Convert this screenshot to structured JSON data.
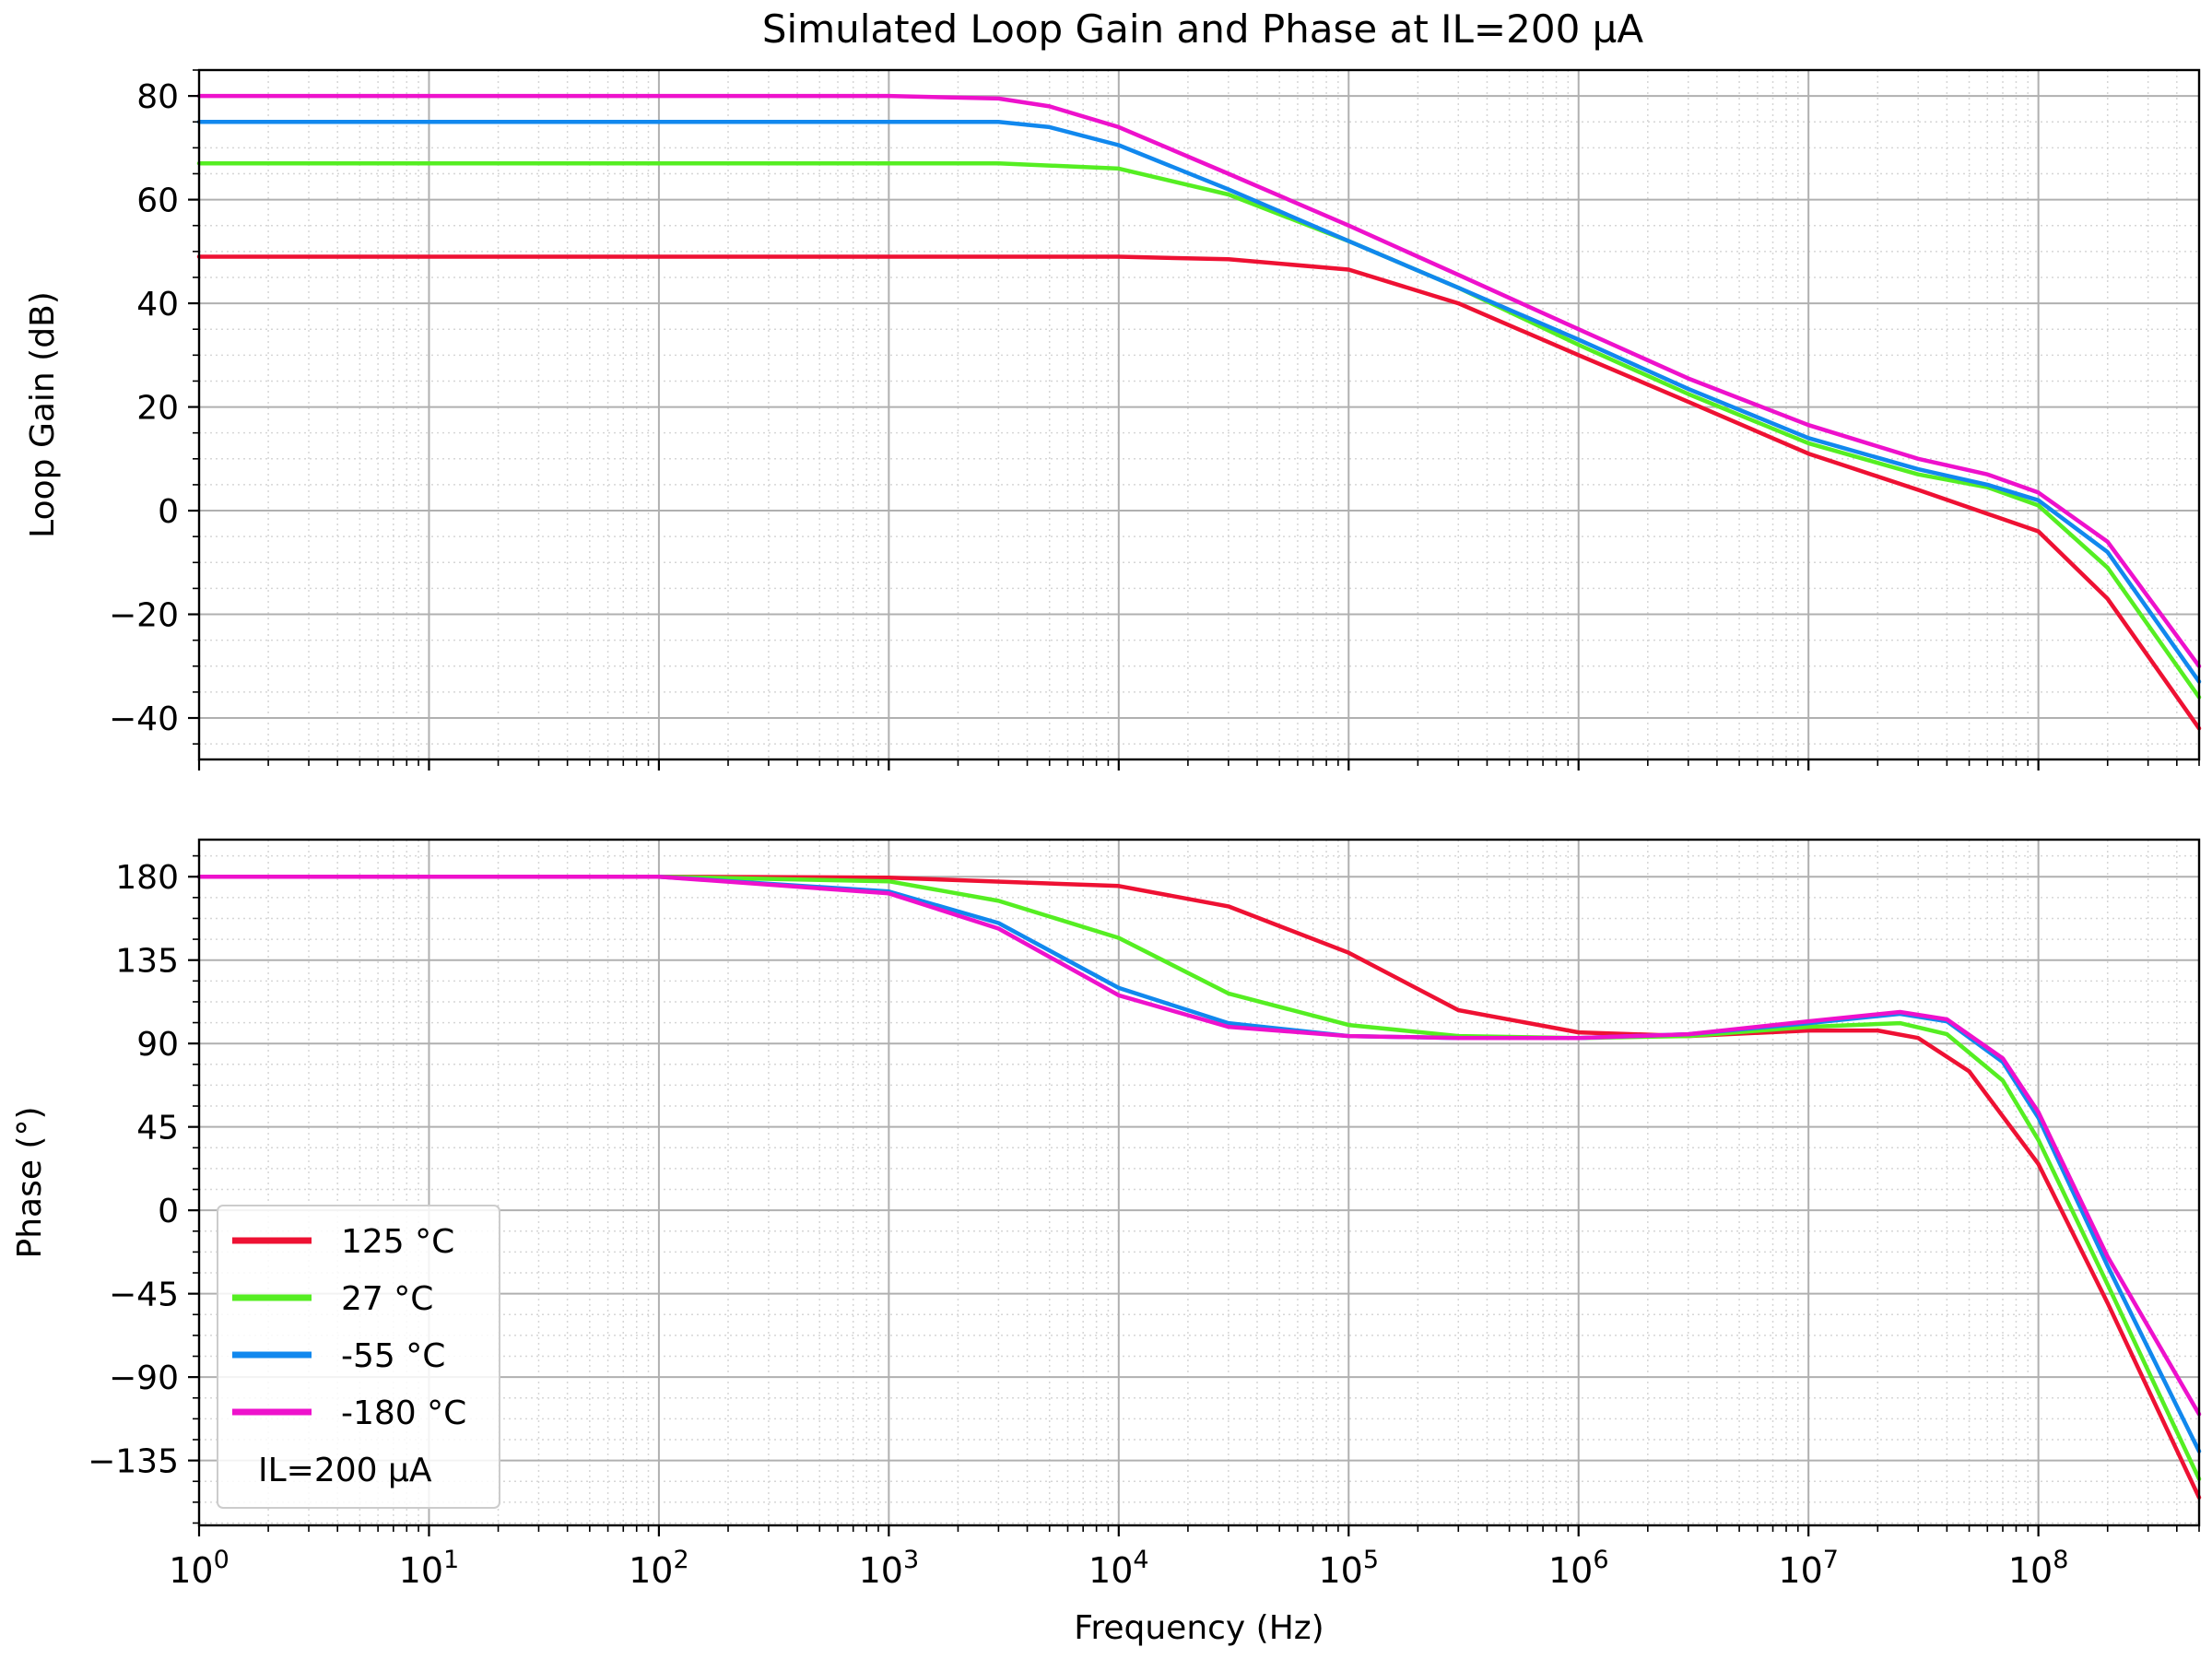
{
  "figure": {
    "title": "Simulated Loop Gain and Phase at IL=200 µA"
  },
  "chart_data": [
    {
      "type": "line",
      "panel": "gain",
      "title": "Simulated Loop Gain and Phase at IL=200 µA",
      "xlabel": "",
      "ylabel": "Loop Gain (dB)",
      "xscale": "log",
      "xlim": [
        1,
        500000000
      ],
      "ylim": [
        -48,
        85
      ],
      "yticks": [
        80,
        60,
        40,
        20,
        0,
        -20,
        -40
      ],
      "ytick_labels": [
        "80",
        "60",
        "40",
        "20",
        "0",
        "−20",
        "−40"
      ],
      "grid": true,
      "series": [
        {
          "name": "125 °C",
          "color": "#ee1133",
          "x": [
            1,
            10,
            100,
            1000,
            10000,
            30000,
            100000,
            300000,
            1000000,
            3000000,
            10000000,
            30000000,
            100000000,
            200000000,
            500000000
          ],
          "y": [
            49,
            49,
            49,
            49,
            49,
            48.5,
            46.5,
            40,
            30,
            21,
            11,
            4,
            -4,
            -17,
            -42
          ]
        },
        {
          "name": "27 °C",
          "color": "#55ee22",
          "x": [
            1,
            10,
            100,
            1000,
            3000,
            10000,
            30000,
            100000,
            300000,
            1000000,
            3000000,
            10000000,
            30000000,
            60000000,
            100000000,
            200000000,
            500000000
          ],
          "y": [
            67,
            67,
            67,
            67,
            67,
            66,
            61,
            52,
            43,
            32,
            22.5,
            13,
            7,
            4.5,
            1,
            -11,
            -36
          ]
        },
        {
          "name": "-55 °C",
          "color": "#1188ee",
          "x": [
            1,
            10,
            100,
            1000,
            3000,
            5000,
            10000,
            30000,
            100000,
            300000,
            1000000,
            3000000,
            10000000,
            30000000,
            60000000,
            100000000,
            200000000,
            500000000
          ],
          "y": [
            75,
            75,
            75,
            75,
            75,
            74,
            70.5,
            62,
            52,
            43,
            33,
            23.5,
            14,
            8,
            5,
            2,
            -8,
            -33
          ]
        },
        {
          "name": "-180 °C",
          "color": "#ee11cc",
          "x": [
            1,
            10,
            100,
            1000,
            3000,
            5000,
            10000,
            30000,
            100000,
            300000,
            1000000,
            3000000,
            10000000,
            30000000,
            60000000,
            100000000,
            200000000,
            500000000
          ],
          "y": [
            80,
            80,
            80,
            80,
            79.5,
            78,
            74,
            65,
            55,
            45.5,
            35,
            25.5,
            16.5,
            10,
            7,
            3.5,
            -6,
            -30
          ]
        }
      ]
    },
    {
      "type": "line",
      "panel": "phase",
      "title": "",
      "xlabel": "Frequency (Hz)",
      "ylabel": "Phase (°)",
      "xscale": "log",
      "xlim": [
        1,
        500000000
      ],
      "ylim": [
        -170,
        200
      ],
      "xtick_base": "10",
      "xtick_exponents": [
        "0",
        "1",
        "2",
        "3",
        "4",
        "5",
        "6",
        "7",
        "8"
      ],
      "yticks": [
        180,
        135,
        90,
        45,
        0,
        -45,
        -90,
        -135
      ],
      "ytick_labels": [
        "180",
        "135",
        "90",
        "45",
        "0",
        "−45",
        "−90",
        "−135"
      ],
      "grid": true,
      "legend": {
        "placement": "lower-left",
        "note": "IL=200 µA"
      },
      "series": [
        {
          "name": "125 °C",
          "color": "#ee1133",
          "x": [
            1,
            100,
            1000,
            10000,
            30000,
            100000,
            300000,
            1000000,
            3000000,
            10000000,
            20000000,
            30000000,
            50000000,
            100000000,
            200000000,
            500000000
          ],
          "y": [
            180,
            180,
            179.5,
            175,
            164,
            139,
            108,
            96,
            94,
            97,
            97,
            93,
            75,
            25,
            -50,
            -155
          ]
        },
        {
          "name": "27 °C",
          "color": "#55ee22",
          "x": [
            1,
            100,
            1000,
            3000,
            10000,
            30000,
            100000,
            300000,
            1000000,
            3000000,
            10000000,
            25000000,
            40000000,
            70000000,
            100000000,
            200000000,
            500000000
          ],
          "y": [
            180,
            180,
            177.5,
            167,
            147,
            117,
            100,
            94,
            93,
            94,
            99,
            101,
            95,
            70,
            38,
            -40,
            -145
          ]
        },
        {
          "name": "-55 °C",
          "color": "#1188ee",
          "x": [
            1,
            100,
            1000,
            3000,
            10000,
            30000,
            100000,
            300000,
            1000000,
            3000000,
            10000000,
            25000000,
            40000000,
            70000000,
            100000000,
            200000000,
            500000000
          ],
          "y": [
            180,
            180,
            172,
            155,
            120,
            101,
            94,
            93,
            93,
            95,
            101,
            106,
            102,
            80,
            50,
            -30,
            -130
          ]
        },
        {
          "name": "-180 °C",
          "color": "#ee11cc",
          "x": [
            1,
            100,
            1000,
            3000,
            10000,
            30000,
            100000,
            300000,
            1000000,
            3000000,
            10000000,
            25000000,
            40000000,
            70000000,
            100000000,
            200000000,
            500000000
          ],
          "y": [
            180,
            180,
            171,
            152,
            116,
            99,
            94,
            93,
            93,
            95,
            102,
            107,
            103,
            82,
            53,
            -25,
            -110
          ]
        }
      ]
    }
  ]
}
